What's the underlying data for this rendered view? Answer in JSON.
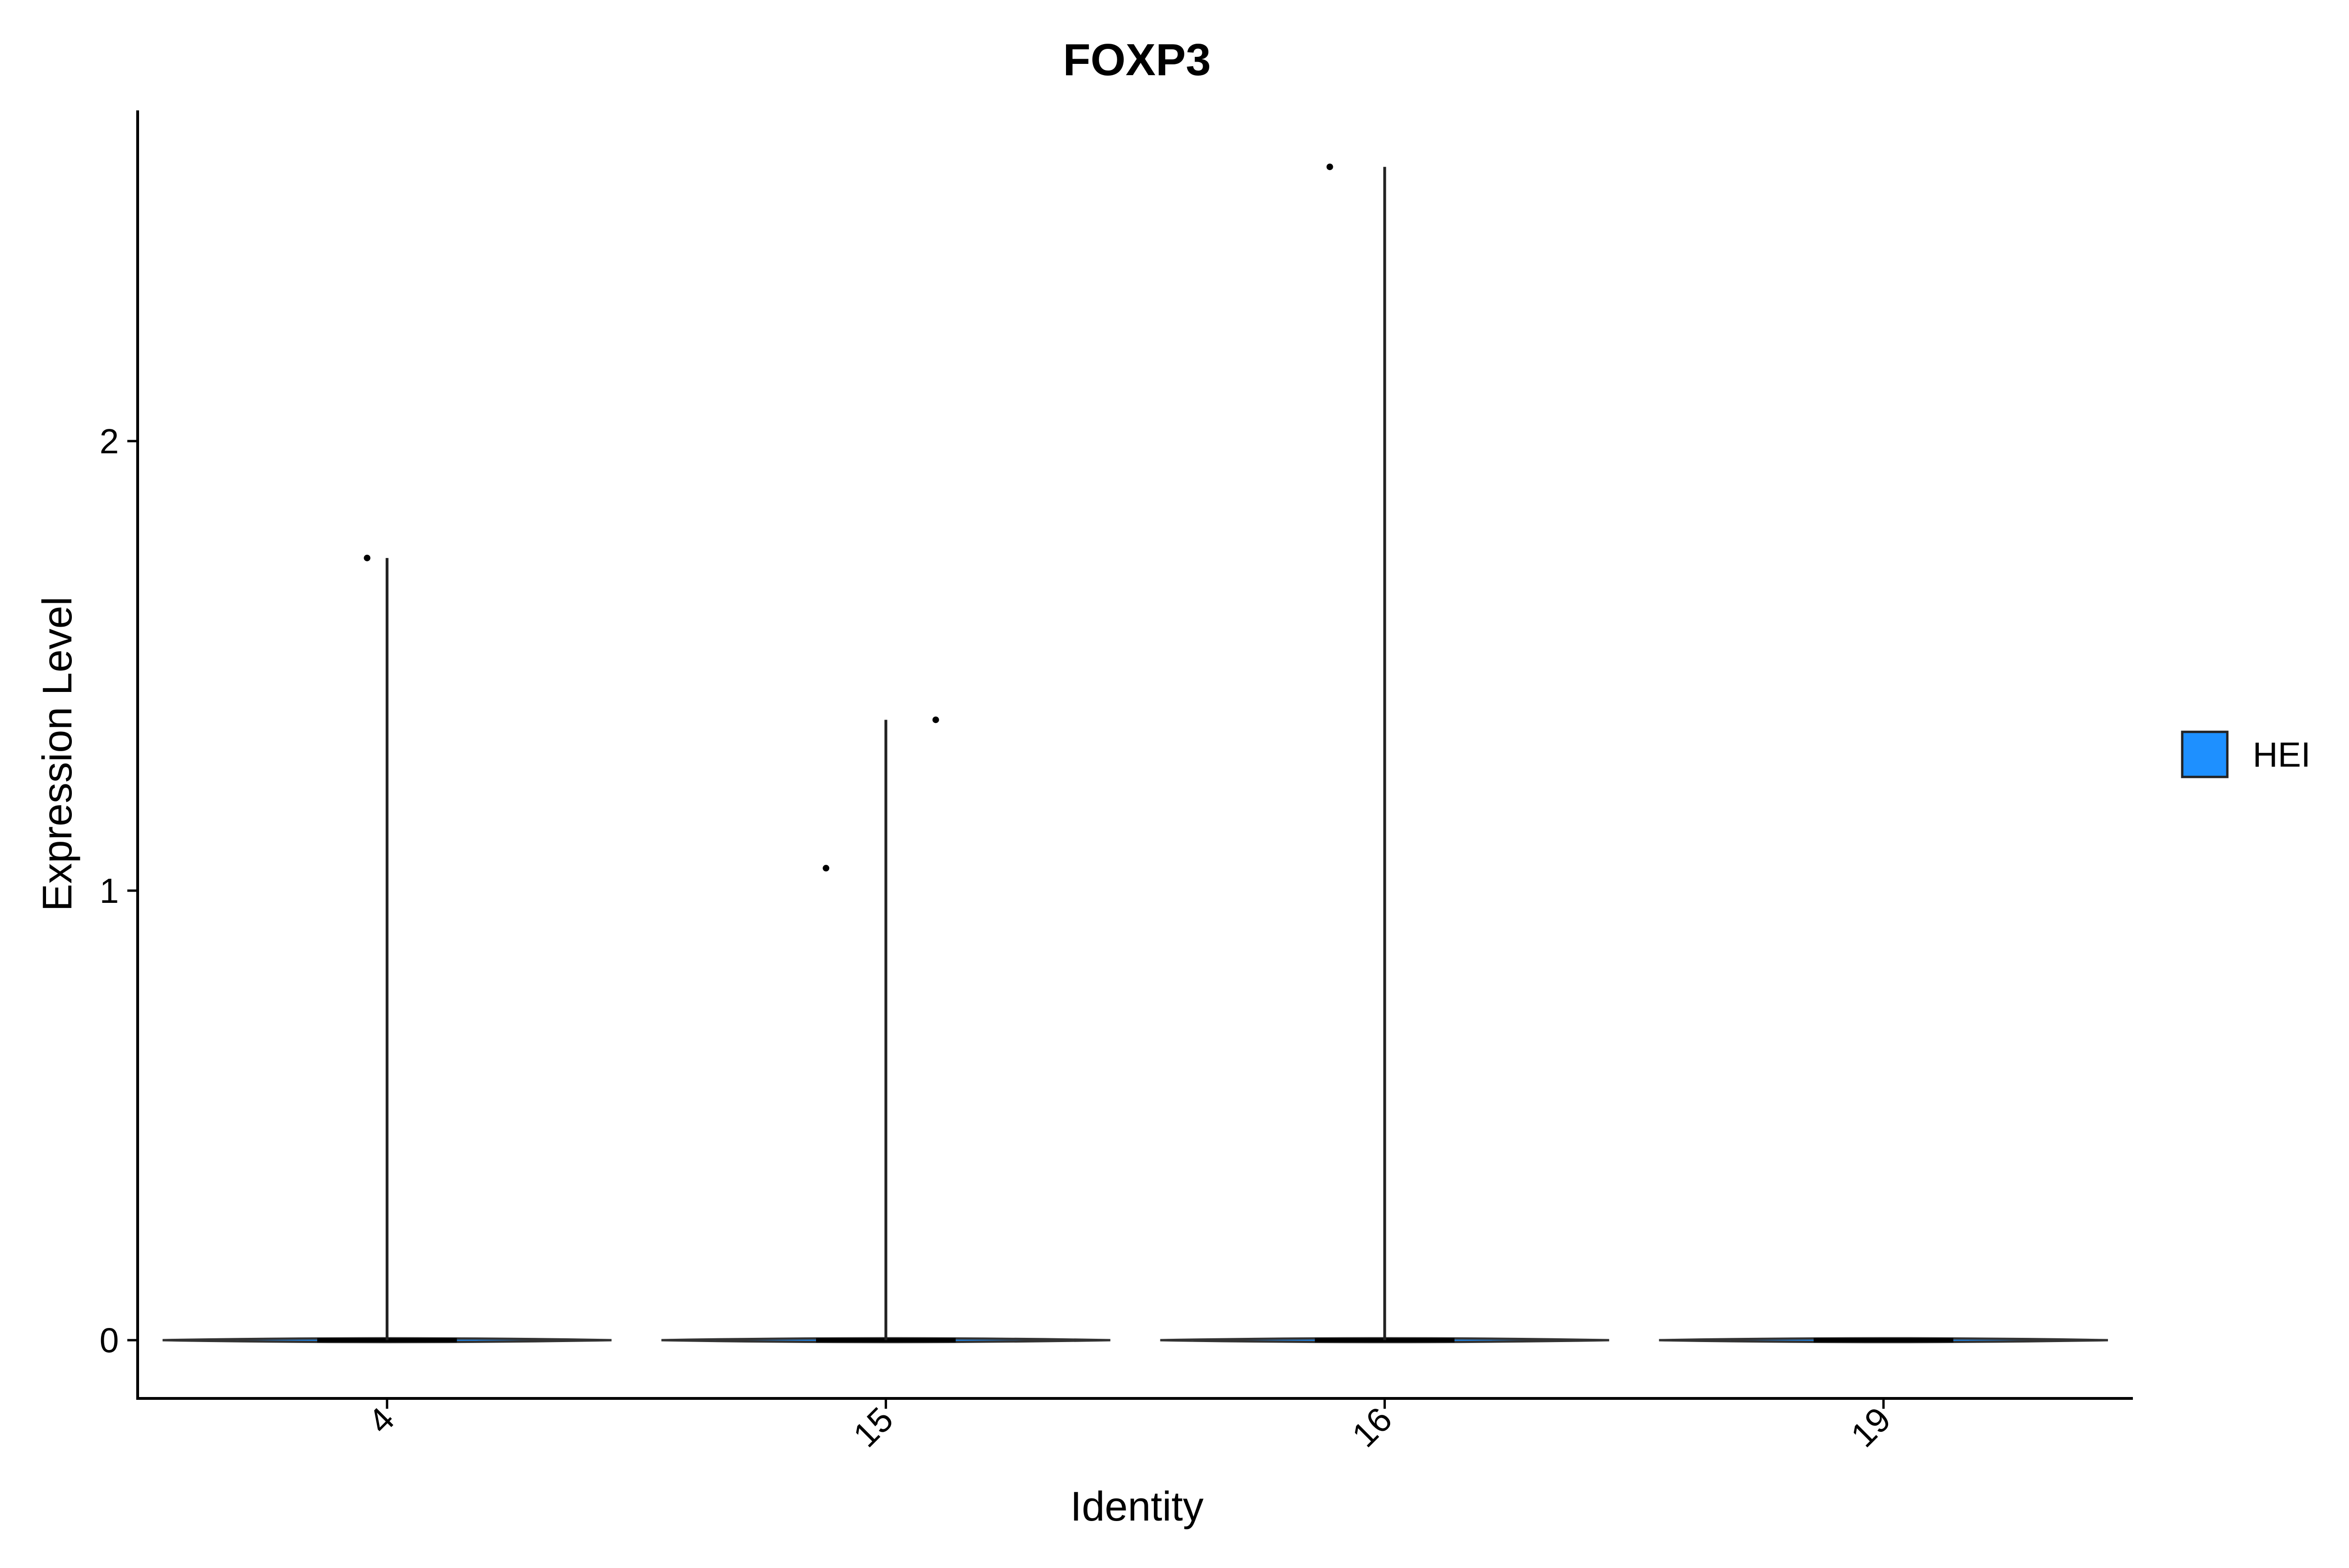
{
  "chart_data": {
    "type": "violin",
    "title": "FOXP3",
    "xlabel": "Identity",
    "ylabel": "Expression Level",
    "categories": [
      "4",
      "15",
      "16",
      "19"
    ],
    "ylim": [
      -0.13,
      2.73
    ],
    "yticks": [
      0,
      1,
      2
    ],
    "yticklabels": [
      "0",
      "1",
      "2"
    ],
    "series": [
      {
        "name": "HEI",
        "color": "#1E90FF",
        "groups": [
          {
            "category": "4",
            "max": 1.74,
            "points": [
              {
                "x_offset": -0.04,
                "y": 1.74
              }
            ]
          },
          {
            "category": "15",
            "max": 1.38,
            "points": [
              {
                "x_offset": -0.12,
                "y": 1.05
              },
              {
                "x_offset": 0.1,
                "y": 1.38
              }
            ]
          },
          {
            "category": "16",
            "max": 2.61,
            "points": [
              {
                "x_offset": -0.11,
                "y": 2.61
              }
            ]
          },
          {
            "category": "19",
            "max": 0.0,
            "points": []
          }
        ]
      }
    ],
    "legend": {
      "position": "right",
      "entries": [
        "HEI"
      ]
    },
    "grid": false
  }
}
